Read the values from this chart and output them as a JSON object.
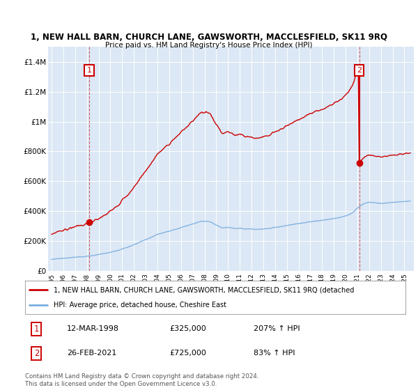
{
  "title": "1, NEW HALL BARN, CHURCH LANE, GAWSWORTH, MACCLESFIELD, SK11 9RQ",
  "subtitle": "Price paid vs. HM Land Registry's House Price Index (HPI)",
  "bg_color": "#dce8f5",
  "red_color": "#cc0000",
  "blue_color": "#7aade0",
  "purchase1_date": 1998.19,
  "purchase1_price": 325000,
  "purchase2_date": 2021.15,
  "purchase2_price": 725000,
  "legend_line1": "1, NEW HALL BARN, CHURCH LANE, GAWSWORTH, MACCLESFIELD, SK11 9RQ (detached",
  "legend_line2": "HPI: Average price, detached house, Cheshire East",
  "annotation1_date": "12-MAR-1998",
  "annotation1_price": "£325,000",
  "annotation1_hpi": "207% ↑ HPI",
  "annotation2_date": "26-FEB-2021",
  "annotation2_price": "£725,000",
  "annotation2_hpi": "83% ↑ HPI",
  "footer": "Contains HM Land Registry data © Crown copyright and database right 2024.\nThis data is licensed under the Open Government Licence v3.0.",
  "xmin": 1994.7,
  "xmax": 2025.8,
  "ymin": 0,
  "ymax": 1500000
}
